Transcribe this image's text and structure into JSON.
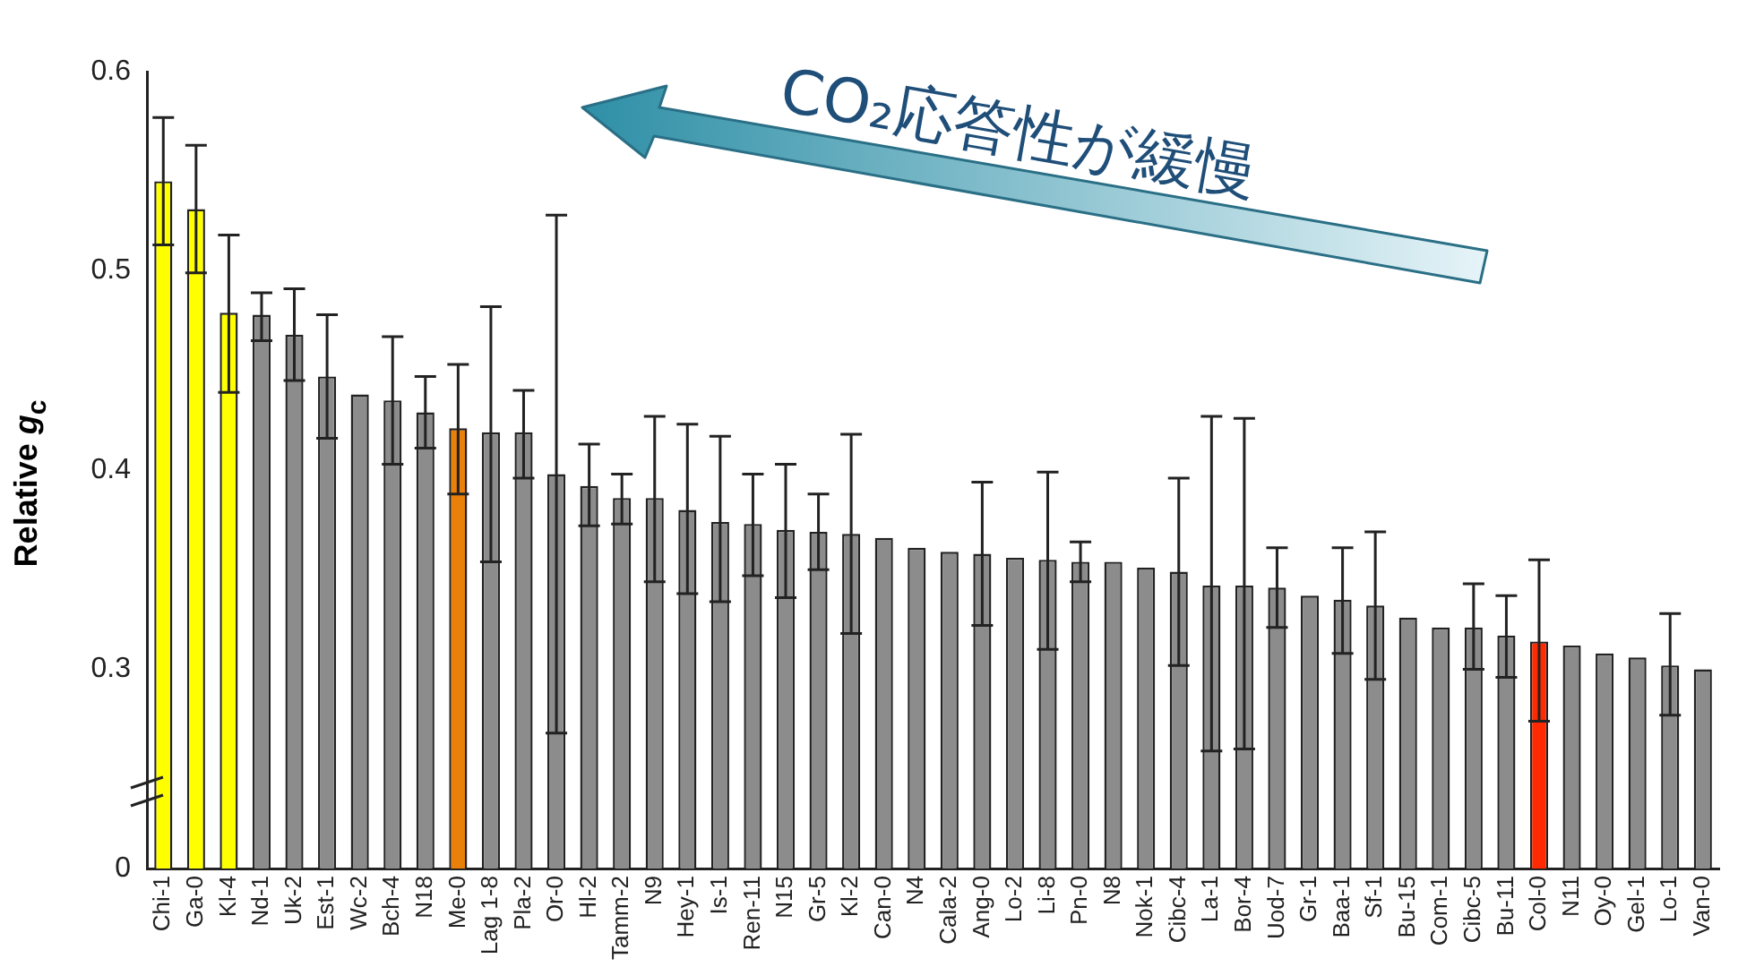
{
  "chart_data": {
    "type": "bar",
    "ylabel": "Relative g$_{c}$",
    "annotations": [
      "CO₂応答性が緩慢"
    ],
    "categories": [
      "Chi-1",
      "Ga-0",
      "Kl-4",
      "Nd-1",
      "Uk-2",
      "Est-1",
      "Wc-2",
      "Bch-4",
      "N18",
      "Me-0",
      "Lag 1-8",
      "Pla-2",
      "Or-0",
      "Hl-2",
      "Tamm-2",
      "N9",
      "Hey-1",
      "Is-1",
      "Ren-11",
      "N15",
      "Gr-5",
      "Kl-2",
      "Can-0",
      "N4",
      "Cala-2",
      "Ang-0",
      "Lo-2",
      "Li-8",
      "Pn-0",
      "N8",
      "Nok-1",
      "Cibc-4",
      "La-1",
      "Bor-4",
      "Uod-7",
      "Gr-1",
      "Baa-1",
      "Sf-1",
      "Bu-15",
      "Com-1",
      "Cibc-5",
      "Bu-11",
      "Col-0",
      "N11",
      "Oy-0",
      "Gel-1",
      "Lo-1",
      "Van-0"
    ],
    "values": [
      0.545,
      0.531,
      0.479,
      0.478,
      0.468,
      0.447,
      0.438,
      0.435,
      0.429,
      0.421,
      0.419,
      0.419,
      0.398,
      0.392,
      0.386,
      0.386,
      0.38,
      0.374,
      0.373,
      0.37,
      0.369,
      0.368,
      0.366,
      0.361,
      0.359,
      0.358,
      0.356,
      0.355,
      0.354,
      0.354,
      0.351,
      0.349,
      0.342,
      0.342,
      0.341,
      0.337,
      0.335,
      0.332,
      0.326,
      0.321,
      0.321,
      0.317,
      0.314,
      0.312,
      0.308,
      0.306,
      0.302,
      0.3
    ],
    "errors": [
      [
        0.513,
        0.577
      ],
      [
        0.499,
        0.563
      ],
      [
        0.439,
        0.518
      ],
      [
        0.465,
        0.489
      ],
      [
        0.445,
        0.491
      ],
      [
        0.416,
        0.478
      ],
      null,
      [
        0.403,
        0.467
      ],
      [
        0.411,
        0.447
      ],
      [
        0.388,
        0.453
      ],
      [
        0.354,
        0.482
      ],
      [
        0.396,
        0.44
      ],
      [
        0.268,
        0.528
      ],
      [
        0.372,
        0.413
      ],
      [
        0.373,
        0.398
      ],
      [
        0.344,
        0.427
      ],
      [
        0.338,
        0.423
      ],
      [
        0.334,
        0.417
      ],
      [
        0.347,
        0.398
      ],
      [
        0.336,
        0.403
      ],
      [
        0.35,
        0.388
      ],
      [
        0.318,
        0.418
      ],
      null,
      null,
      null,
      [
        0.322,
        0.394
      ],
      null,
      [
        0.31,
        0.399
      ],
      [
        0.344,
        0.364
      ],
      null,
      null,
      [
        0.302,
        0.396
      ],
      [
        0.259,
        0.427
      ],
      [
        0.26,
        0.426
      ],
      [
        0.321,
        0.361
      ],
      null,
      [
        0.308,
        0.361
      ],
      [
        0.295,
        0.369
      ],
      null,
      null,
      [
        0.3,
        0.343
      ],
      [
        0.296,
        0.337
      ],
      [
        0.274,
        0.355
      ],
      null,
      null,
      null,
      [
        0.277,
        0.328
      ],
      null
    ],
    "colors": [
      "#ffff00",
      "#ffff00",
      "#ffff00",
      "#8c8c8c",
      "#8c8c8c",
      "#8c8c8c",
      "#8c8c8c",
      "#8c8c8c",
      "#8c8c8c",
      "#e8800a",
      "#8c8c8c",
      "#8c8c8c",
      "#8c8c8c",
      "#8c8c8c",
      "#8c8c8c",
      "#8c8c8c",
      "#8c8c8c",
      "#8c8c8c",
      "#8c8c8c",
      "#8c8c8c",
      "#8c8c8c",
      "#8c8c8c",
      "#8c8c8c",
      "#8c8c8c",
      "#8c8c8c",
      "#8c8c8c",
      "#8c8c8c",
      "#8c8c8c",
      "#8c8c8c",
      "#8c8c8c",
      "#8c8c8c",
      "#8c8c8c",
      "#8c8c8c",
      "#8c8c8c",
      "#8c8c8c",
      "#8c8c8c",
      "#8c8c8c",
      "#8c8c8c",
      "#8c8c8c",
      "#8c8c8c",
      "#8c8c8c",
      "#8c8c8c",
      "#ff2a00",
      "#8c8c8c",
      "#8c8c8c",
      "#8c8c8c",
      "#8c8c8c",
      "#8c8c8c"
    ],
    "ylim": [
      0.2,
      0.6
    ],
    "yticks": [
      {
        "value": 0.2,
        "label": "0"
      },
      0.3,
      0.4,
      0.5,
      0.6
    ],
    "grid": false,
    "legend": false
  }
}
